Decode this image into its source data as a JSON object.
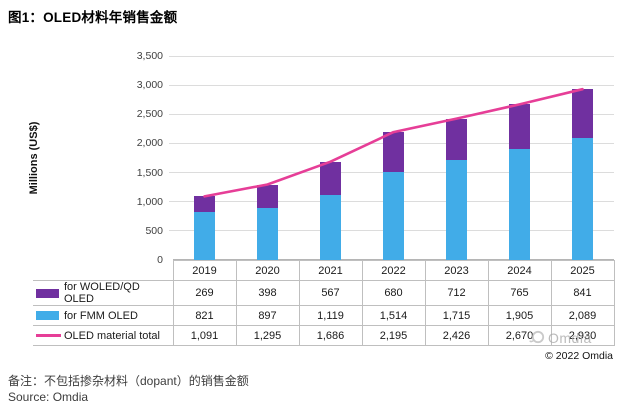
{
  "title": "图1：OLED材料年销售金额",
  "chart_data": {
    "type": "bar",
    "subtype": "stacked-bars-with-total-line",
    "categories": [
      "2019",
      "2020",
      "2021",
      "2022",
      "2023",
      "2024",
      "2025"
    ],
    "series": [
      {
        "name": "for WOLED/QD OLED",
        "kind": "bar",
        "stack_level": "top",
        "color": "#7030A0",
        "values": [
          269,
          398,
          567,
          680,
          712,
          765,
          841
        ]
      },
      {
        "name": "for FMM OLED",
        "kind": "bar",
        "stack_level": "bottom",
        "color": "#41ACE8",
        "values": [
          821,
          897,
          1119,
          1514,
          1715,
          1905,
          2089
        ]
      },
      {
        "name": "OLED material total",
        "kind": "line",
        "color": "#E63E97",
        "values": [
          1091,
          1295,
          1686,
          2195,
          2426,
          2670,
          2930
        ]
      }
    ],
    "ylabel": "Millions (US$)",
    "ylim": [
      0,
      3500
    ],
    "yticks": [
      0,
      500,
      1000,
      1500,
      2000,
      2500,
      3000,
      3500
    ],
    "grid": true,
    "legend_position": "table-left-column"
  },
  "watermark": {
    "logo_icon": "omdia-swirl-logo",
    "text": "Omdia"
  },
  "copyright": "© 2022 Omdia",
  "notes": {
    "remark": "备注：不包括掺杂材料（dopant）的销售金额",
    "source": "Source: Omdia"
  },
  "colors": {
    "woled_purple": "#7030A0",
    "fmm_blue": "#41ACE8",
    "total_pink": "#E63E97",
    "gridline": "#DCDCDC",
    "table_border": "#BFBFBF"
  }
}
